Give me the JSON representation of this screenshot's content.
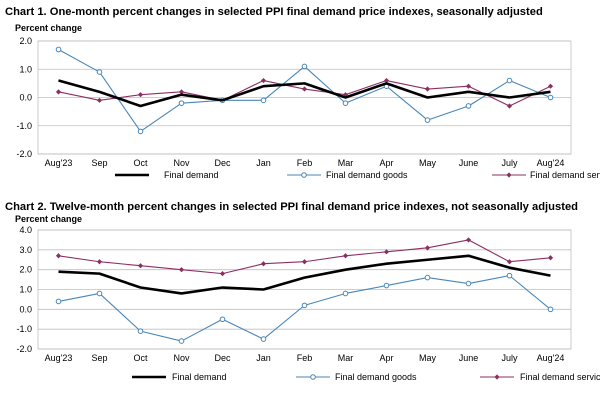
{
  "chart_data": [
    {
      "type": "line",
      "title": "Chart 1. One-month percent changes in selected PPI final demand price indexes, seasonally adjusted",
      "ylabel": "Percent change",
      "xlabel": "",
      "categories": [
        "Aug'23",
        "Sep",
        "Oct",
        "Nov",
        "Dec",
        "Jan",
        "Feb",
        "Mar",
        "Apr",
        "May",
        "June",
        "July",
        "Aug'24"
      ],
      "ylim": [
        -2.0,
        2.0
      ],
      "yticks": [
        -2.0,
        -1.0,
        0.0,
        1.0,
        2.0
      ],
      "ytick_labels": [
        "-2.0",
        "-1.0",
        "0.0",
        "1.0",
        "2.0"
      ],
      "grid": true,
      "legend_position": "bottom",
      "series": [
        {
          "name": "Final demand",
          "color": "#000000",
          "style": "thick",
          "values": [
            0.6,
            0.2,
            -0.3,
            0.1,
            -0.1,
            0.4,
            0.5,
            0.0,
            0.5,
            0.0,
            0.2,
            0.0,
            0.2
          ]
        },
        {
          "name": "Final demand goods",
          "color": "#4a86b8",
          "style": "open-circle",
          "values": [
            1.7,
            0.9,
            -1.2,
            -0.2,
            -0.1,
            -0.1,
            1.1,
            -0.2,
            0.4,
            -0.8,
            -0.3,
            0.6,
            0.0
          ]
        },
        {
          "name": "Final demand services",
          "color": "#8b2f63",
          "style": "diamond",
          "values": [
            0.2,
            -0.1,
            0.1,
            0.2,
            -0.1,
            0.6,
            0.3,
            0.1,
            0.6,
            0.3,
            0.4,
            -0.3,
            0.4
          ]
        }
      ]
    },
    {
      "type": "line",
      "title": "Chart 2. Twelve-month percent changes in selected PPI final demand price indexes, not seasonally adjusted",
      "ylabel": "Percent change",
      "xlabel": "",
      "categories": [
        "Aug'23",
        "Sep",
        "Oct",
        "Nov",
        "Dec",
        "Jan",
        "Feb",
        "Mar",
        "Apr",
        "May",
        "June",
        "July",
        "Aug'24"
      ],
      "ylim": [
        -2.0,
        4.0
      ],
      "yticks": [
        -2.0,
        -1.0,
        0.0,
        1.0,
        2.0,
        3.0,
        4.0
      ],
      "ytick_labels": [
        "-2.0",
        "-1.0",
        "0.0",
        "1.0",
        "2.0",
        "3.0",
        "4.0"
      ],
      "grid": true,
      "legend_position": "bottom",
      "series": [
        {
          "name": "Final demand",
          "color": "#000000",
          "style": "thick",
          "values": [
            1.9,
            1.8,
            1.1,
            0.8,
            1.1,
            1.0,
            1.6,
            2.0,
            2.3,
            2.5,
            2.7,
            2.1,
            1.7
          ]
        },
        {
          "name": "Final demand goods",
          "color": "#4a86b8",
          "style": "open-circle",
          "values": [
            0.4,
            0.8,
            -1.1,
            -1.6,
            -0.5,
            -1.5,
            0.2,
            0.8,
            1.2,
            1.6,
            1.3,
            1.7,
            0.0
          ]
        },
        {
          "name": "Final demand services",
          "color": "#8b2f63",
          "style": "diamond",
          "values": [
            2.7,
            2.4,
            2.2,
            2.0,
            1.8,
            2.3,
            2.4,
            2.7,
            2.9,
            3.1,
            3.5,
            2.4,
            2.6
          ]
        }
      ]
    }
  ]
}
